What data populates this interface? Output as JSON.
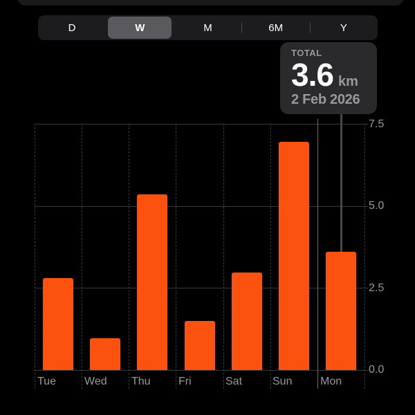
{
  "segmented_control": {
    "options": [
      {
        "label": "D"
      },
      {
        "label": "W"
      },
      {
        "label": "M"
      },
      {
        "label": "6M"
      },
      {
        "label": "Y"
      }
    ],
    "selected": "W"
  },
  "tooltip": {
    "title": "TOTAL",
    "value": "3.6",
    "unit": "km",
    "date": "2 Feb 2026"
  },
  "chart_data": {
    "type": "bar",
    "categories": [
      "Tue",
      "Wed",
      "Thu",
      "Fri",
      "Sat",
      "Sun",
      "Mon"
    ],
    "values": [
      2.8,
      0.97,
      5.35,
      1.5,
      2.97,
      6.95,
      3.6
    ],
    "unit": "km",
    "title": "",
    "xlabel": "",
    "ylabel": "",
    "ylim": [
      0,
      7.5
    ],
    "y_ticks": [
      "7.5",
      "5.0",
      "2.5",
      "0.0"
    ],
    "y_axis_position": "right",
    "grid": "horizontal solid, vertical dashed column separators",
    "selected_index": 6,
    "selected_bar_label": "Mon",
    "selected_total": "3.6 km on 2 Feb 2026",
    "bar_color": "#fb520f"
  },
  "colors": {
    "background": "#000000",
    "bar_orange": "#fb520f",
    "tooltip_background": "#2a2a2c",
    "segmented_background": "#1c1c1e",
    "selected_segment": "#5a5a5e",
    "gridline": "#3a3a3c",
    "selected_column_line": "#6e6e73",
    "axis_text": "#98989d",
    "primary_text": "#ffffff"
  }
}
